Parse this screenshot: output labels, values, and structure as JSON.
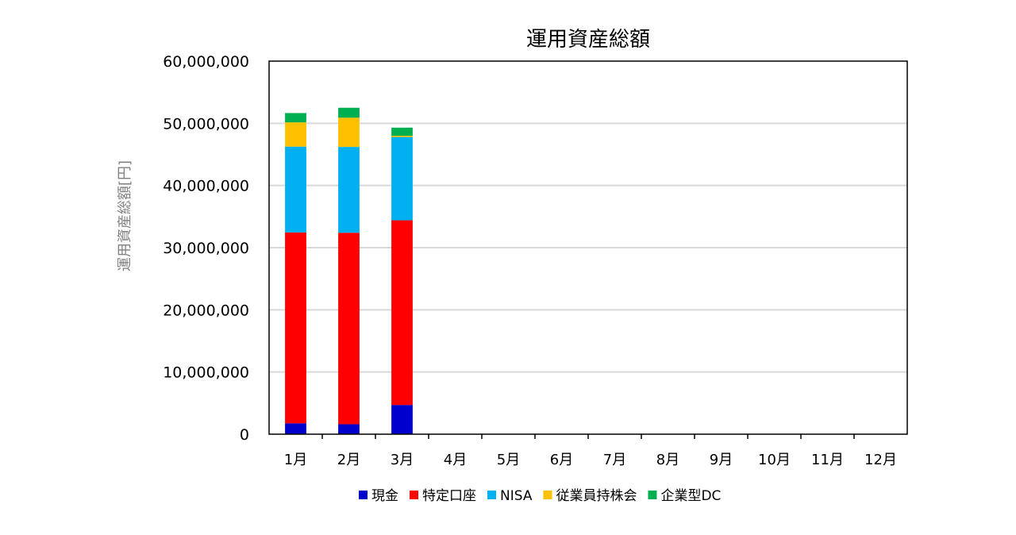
{
  "chart_data": {
    "type": "bar",
    "stacked": true,
    "title": "運用資産総額",
    "xlabel": "",
    "ylabel": "運用資産総額[円]",
    "ylim": [
      0,
      60000000
    ],
    "yticks": [
      0,
      10000000,
      20000000,
      30000000,
      40000000,
      50000000,
      60000000
    ],
    "ytick_labels": [
      "0",
      "10,000,000",
      "20,000,000",
      "30,000,000",
      "40,000,000",
      "50,000,000",
      "60,000,000"
    ],
    "grid": true,
    "legend": "bottom",
    "categories": [
      "1月",
      "2月",
      "3月",
      "4月",
      "5月",
      "6月",
      "7月",
      "8月",
      "9月",
      "10月",
      "11月",
      "12月"
    ],
    "series": [
      {
        "name": "現金",
        "color": "#0000CC",
        "values": [
          1750000,
          1600000,
          4700000,
          null,
          null,
          null,
          null,
          null,
          null,
          null,
          null,
          null
        ]
      },
      {
        "name": "特定口座",
        "color": "#FF0000",
        "values": [
          30700000,
          30800000,
          29700000,
          null,
          null,
          null,
          null,
          null,
          null,
          null,
          null,
          null
        ]
      },
      {
        "name": "NISA",
        "color": "#00B0F0",
        "values": [
          13800000,
          13800000,
          13400000,
          null,
          null,
          null,
          null,
          null,
          null,
          null,
          null,
          null
        ]
      },
      {
        "name": "従業員持株会",
        "color": "#FFC000",
        "values": [
          3900000,
          4700000,
          200000,
          null,
          null,
          null,
          null,
          null,
          null,
          null,
          null,
          null
        ]
      },
      {
        "name": "企業型DC",
        "color": "#00B050",
        "values": [
          1500000,
          1600000,
          1300000,
          null,
          null,
          null,
          null,
          null,
          null,
          null,
          null,
          null
        ]
      }
    ]
  }
}
